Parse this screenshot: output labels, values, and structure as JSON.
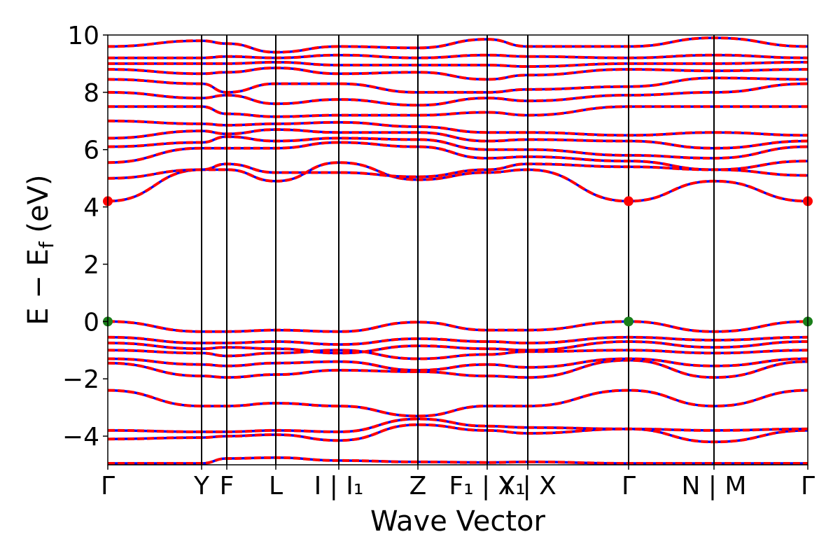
{
  "chart_data": {
    "type": "line",
    "xlabel": "Wave Vector",
    "ylabel": "E − E",
    "ylabel_sub": "f",
    "ylabel_unit": " (eV)",
    "ylim": [
      -5,
      10
    ],
    "yticks": [
      -4,
      -2,
      0,
      2,
      4,
      6,
      8,
      10
    ],
    "ytick_labels": [
      "−4",
      "−2",
      "0",
      "2",
      "4",
      "6",
      "8",
      "10"
    ],
    "xlim": [
      0,
      1000
    ],
    "kpoints": [
      {
        "x": 0,
        "label": "Γ"
      },
      {
        "x": 134,
        "label": "Y"
      },
      {
        "x": 170,
        "label": "F"
      },
      {
        "x": 240,
        "label": "L"
      },
      {
        "x": 330,
        "label": "I | I₁"
      },
      {
        "x": 443,
        "label": "Z"
      },
      {
        "x": 542,
        "label": "F₁ | X₁"
      },
      {
        "x": 600,
        "label": "Y | X"
      },
      {
        "x": 744,
        "label": "Γ"
      },
      {
        "x": 866,
        "label": "N | M"
      },
      {
        "x": 1000,
        "label": "Γ"
      }
    ],
    "markers": [
      {
        "x": 0,
        "y": 4.2,
        "color": "#ff0000"
      },
      {
        "x": 744,
        "y": 4.2,
        "color": "#ff0000"
      },
      {
        "x": 1000,
        "y": 4.2,
        "color": "#ff0000"
      },
      {
        "x": 0,
        "y": 0.0,
        "color": "#1a7f1a"
      },
      {
        "x": 744,
        "y": 0.0,
        "color": "#1a7f1a"
      },
      {
        "x": 1000,
        "y": 0.0,
        "color": "#1a7f1a"
      }
    ],
    "series_colors": {
      "spin_up": "#ff0000",
      "spin_down": "#0000ff"
    },
    "bands": [
      [
        -4.95,
        -4.95,
        -4.78,
        -4.75,
        -4.85,
        -4.9,
        -4.92,
        -4.9,
        -4.95,
        -4.95,
        -4.95
      ],
      [
        -4.1,
        -4.05,
        -4.0,
        -3.95,
        -4.15,
        -3.6,
        -3.8,
        -3.9,
        -3.75,
        -4.2,
        -3.8
      ],
      [
        -3.8,
        -3.85,
        -3.85,
        -3.8,
        -3.85,
        -3.4,
        -3.65,
        -3.7,
        -3.75,
        -3.8,
        -3.75
      ],
      [
        -2.4,
        -2.95,
        -2.95,
        -2.85,
        -2.95,
        -3.3,
        -2.95,
        -2.95,
        -2.4,
        -2.95,
        -2.4
      ],
      [
        -1.45,
        -1.9,
        -1.95,
        -1.85,
        -1.7,
        -1.75,
        -1.9,
        -1.95,
        -1.35,
        -1.95,
        -1.4
      ],
      [
        -1.3,
        -1.5,
        -1.55,
        -1.45,
        -1.4,
        -1.7,
        -1.5,
        -1.6,
        -1.3,
        -1.55,
        -1.3
      ],
      [
        -1.0,
        -1.1,
        -1.2,
        -1.1,
        -1.0,
        -1.3,
        -1.15,
        -1.05,
        -1.0,
        -1.1,
        -1.0
      ],
      [
        -0.75,
        -0.95,
        -0.9,
        -0.95,
        -1.1,
        -0.85,
        -0.95,
        -1.0,
        -0.7,
        -0.9,
        -0.7
      ],
      [
        -0.55,
        -0.75,
        -0.75,
        -0.7,
        -0.8,
        -0.6,
        -0.7,
        -0.75,
        -0.55,
        -0.65,
        -0.55
      ],
      [
        0.0,
        -0.35,
        -0.35,
        -0.3,
        -0.35,
        -0.02,
        -0.3,
        -0.3,
        0.0,
        -0.35,
        0.0
      ],
      [
        4.2,
        5.3,
        5.3,
        4.9,
        5.55,
        4.95,
        5.2,
        5.3,
        4.2,
        4.9,
        4.2
      ],
      [
        5.0,
        5.3,
        5.5,
        5.2,
        5.2,
        5.05,
        5.3,
        5.5,
        5.4,
        5.3,
        5.1
      ],
      [
        5.55,
        6.05,
        6.05,
        6.05,
        6.25,
        6.1,
        5.7,
        5.75,
        5.6,
        5.3,
        5.6
      ],
      [
        6.1,
        6.25,
        6.45,
        6.3,
        6.4,
        6.35,
        6.0,
        6.0,
        5.8,
        5.7,
        6.1
      ],
      [
        6.4,
        6.65,
        6.55,
        6.7,
        6.6,
        6.6,
        6.3,
        6.35,
        6.3,
        6.05,
        6.3
      ],
      [
        7.0,
        6.9,
        6.85,
        6.9,
        6.95,
        6.8,
        6.6,
        6.6,
        6.5,
        6.6,
        6.5
      ],
      [
        7.5,
        7.5,
        7.25,
        7.15,
        7.2,
        7.2,
        7.3,
        7.2,
        7.5,
        7.5,
        7.5
      ],
      [
        8.0,
        7.8,
        7.9,
        7.6,
        7.75,
        7.55,
        7.8,
        7.7,
        7.9,
        8.0,
        8.3
      ],
      [
        8.45,
        8.3,
        8.0,
        8.3,
        8.3,
        8.0,
        8.0,
        8.1,
        8.2,
        8.5,
        8.45
      ],
      [
        8.8,
        8.65,
        8.7,
        8.85,
        8.65,
        8.7,
        8.45,
        8.6,
        8.8,
        8.75,
        8.8
      ],
      [
        9.0,
        9.0,
        9.0,
        9.05,
        8.95,
        8.95,
        8.95,
        8.9,
        9.0,
        9.0,
        9.05
      ],
      [
        9.2,
        9.2,
        9.25,
        9.2,
        9.3,
        9.2,
        9.3,
        9.25,
        9.2,
        9.3,
        9.2
      ],
      [
        9.6,
        9.8,
        9.7,
        9.4,
        9.6,
        9.55,
        9.85,
        9.6,
        9.6,
        9.9,
        9.6
      ]
    ]
  }
}
